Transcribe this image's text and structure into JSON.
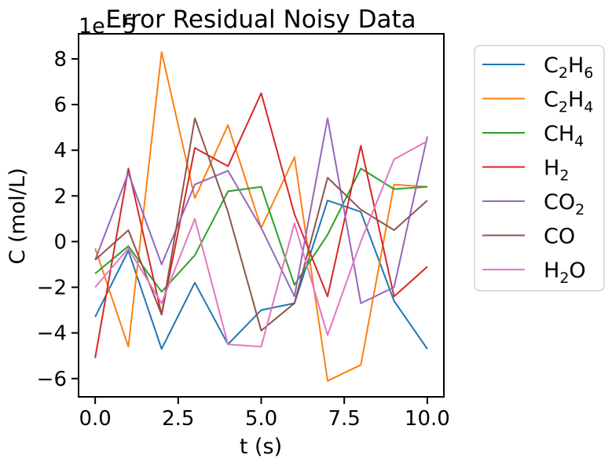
{
  "chart_data": {
    "type": "line",
    "title": "Error Residual Noisy Data",
    "xlabel": "t (s)",
    "ylabel": "C (mol/L)",
    "y_offset_label": "1e−5",
    "xlim": [
      -0.5,
      10.5
    ],
    "ylim": [
      -6.8,
      9.1
    ],
    "xticks": [
      0.0,
      2.5,
      5.0,
      7.5,
      10.0
    ],
    "xtick_labels": [
      "0.0",
      "2.5",
      "5.0",
      "7.5",
      "10.0"
    ],
    "yticks": [
      -6,
      -4,
      -2,
      0,
      2,
      4,
      6,
      8
    ],
    "ytick_labels": [
      "−6",
      "−4",
      "−2",
      "0",
      "2",
      "4",
      "6",
      "8"
    ],
    "grid": false,
    "legend_position": "outside-right",
    "x": [
      0,
      1,
      2,
      3,
      4,
      5,
      6,
      7,
      8,
      9,
      10
    ],
    "series": [
      {
        "name": "C2H6",
        "label_parts": [
          [
            "C",
            "n"
          ],
          [
            "2",
            "sub"
          ],
          [
            "H",
            "n"
          ],
          [
            "6",
            "sub"
          ]
        ],
        "color": "#1f77b4",
        "values": [
          -3.3,
          -0.4,
          -4.7,
          -1.8,
          -4.5,
          -3.0,
          -2.7,
          1.8,
          1.3,
          -2.6,
          -4.7
        ]
      },
      {
        "name": "C2H4",
        "label_parts": [
          [
            "C",
            "n"
          ],
          [
            "2",
            "sub"
          ],
          [
            "H",
            "n"
          ],
          [
            "4",
            "sub"
          ]
        ],
        "color": "#ff7f0e",
        "values": [
          -0.3,
          -4.6,
          8.3,
          1.9,
          5.1,
          0.6,
          3.7,
          -6.1,
          -5.4,
          2.5,
          2.4
        ]
      },
      {
        "name": "CH4",
        "label_parts": [
          [
            "CH",
            "n"
          ],
          [
            "4",
            "sub"
          ]
        ],
        "color": "#2ca02c",
        "values": [
          -1.4,
          -0.2,
          -2.2,
          -0.6,
          2.2,
          2.4,
          -1.9,
          0.3,
          3.2,
          2.3,
          2.4
        ]
      },
      {
        "name": "H2",
        "label_parts": [
          [
            "H",
            "n"
          ],
          [
            "2",
            "sub"
          ]
        ],
        "color": "#d62728",
        "values": [
          -5.1,
          3.2,
          -3.2,
          4.1,
          3.3,
          6.5,
          1.2,
          -2.4,
          4.2,
          -2.4,
          -1.1
        ]
      },
      {
        "name": "CO2",
        "label_parts": [
          [
            "CO",
            "n"
          ],
          [
            "2",
            "sub"
          ]
        ],
        "color": "#9467bd",
        "values": [
          -0.8,
          3.0,
          -1.0,
          2.5,
          3.1,
          0.6,
          -2.4,
          5.4,
          -2.7,
          -2.0,
          4.6
        ]
      },
      {
        "name": "CO",
        "label_parts": [
          [
            "CO",
            "n"
          ]
        ],
        "color": "#8c564b",
        "values": [
          -0.8,
          0.5,
          -3.2,
          5.4,
          1.3,
          -3.9,
          -2.7,
          2.8,
          1.4,
          0.5,
          1.8
        ]
      },
      {
        "name": "H2O",
        "label_parts": [
          [
            "H",
            "n"
          ],
          [
            "2",
            "sub"
          ],
          [
            "O",
            "n"
          ]
        ],
        "color": "#e377c2",
        "values": [
          -2.0,
          -0.3,
          -2.7,
          1.0,
          -4.5,
          -4.6,
          0.8,
          -4.1,
          0.0,
          3.6,
          4.4
        ]
      }
    ]
  }
}
